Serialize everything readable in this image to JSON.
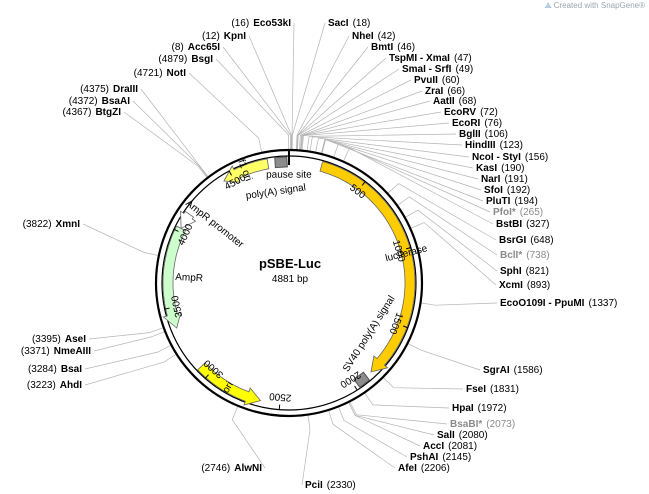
{
  "credit": {
    "logo": "snapgene-logo-icon",
    "text": "Created with SnapGene®"
  },
  "plasmid": {
    "name": "pSBE-Luc",
    "length": "4881 bp",
    "total_bp": 4881
  },
  "ticks": [
    {
      "bp": 500,
      "label": "500"
    },
    {
      "bp": 1000,
      "label": "1000"
    },
    {
      "bp": 1500,
      "label": "1500"
    },
    {
      "bp": 2000,
      "label": "2000"
    },
    {
      "bp": 2500,
      "label": "2500"
    },
    {
      "bp": 3000,
      "label": "3000"
    },
    {
      "bp": 3500,
      "label": "3500"
    },
    {
      "bp": 4000,
      "label": "4000"
    },
    {
      "bp": 4500,
      "label": "4500"
    }
  ],
  "features": [
    {
      "name": "luciferase",
      "start": 210,
      "end": 1862,
      "color": "#ffcc00",
      "dir": 1
    },
    {
      "name": "f1 ori",
      "start": 4440,
      "end": 4745,
      "color": "#ffff66",
      "dir": -1
    },
    {
      "name": "AmpR",
      "start": 3365,
      "end": 4025,
      "color": "#ccffcc",
      "dir": -1
    },
    {
      "name": "ori",
      "start": 2625,
      "end": 3070,
      "color": "#ffff00",
      "dir": -1
    },
    {
      "name": "AmpR promoter",
      "start": 4025,
      "end": 4130,
      "color": "#ffffff",
      "dir": -1
    }
  ],
  "feature_labels": [
    {
      "text": "pause site"
    },
    {
      "text": "poly(A) signal"
    },
    {
      "text": "SV40 poly(A) signal"
    },
    {
      "text": "AmpR promoter"
    },
    {
      "text": "AmpR"
    },
    {
      "text": "f1 ori"
    },
    {
      "text": "ori"
    },
    {
      "text": "luciferase"
    }
  ],
  "sites_right": [
    {
      "name": "SacI",
      "pos": "(18)"
    },
    {
      "name": "NheI",
      "pos": "(42)"
    },
    {
      "name": "BmtI",
      "pos": "(46)"
    },
    {
      "name": "TspMI - XmaI",
      "pos": "(47)"
    },
    {
      "name": "SmaI - SrfI",
      "pos": "(49)"
    },
    {
      "name": "PvuII",
      "pos": "(60)"
    },
    {
      "name": "ZraI",
      "pos": "(66)"
    },
    {
      "name": "AatII",
      "pos": "(68)"
    },
    {
      "name": "EcoRV",
      "pos": "(72)"
    },
    {
      "name": "EcoRI",
      "pos": "(76)"
    },
    {
      "name": "BglII",
      "pos": "(106)"
    },
    {
      "name": "HindIII",
      "pos": "(123)"
    },
    {
      "name": "NcoI - StyI",
      "pos": "(156)"
    },
    {
      "name": "KasI",
      "pos": "(190)"
    },
    {
      "name": "NarI",
      "pos": "(191)"
    },
    {
      "name": "SfoI",
      "pos": "(192)"
    },
    {
      "name": "PluTI",
      "pos": "(194)"
    },
    {
      "name": "PfoI*",
      "pos": "(265)",
      "grey": true
    },
    {
      "name": "BstBI",
      "pos": "(327)"
    },
    {
      "name": "BsrGI",
      "pos": "(648)"
    },
    {
      "name": "BclI*",
      "pos": "(738)",
      "grey": true
    },
    {
      "name": "SphI",
      "pos": "(821)"
    },
    {
      "name": "XcmI",
      "pos": "(893)"
    },
    {
      "name": "EcoO109I - PpuMI",
      "pos": "(1337)"
    },
    {
      "name": "SgrAI",
      "pos": "(1586)"
    },
    {
      "name": "FseI",
      "pos": "(1831)"
    },
    {
      "name": "HpaI",
      "pos": "(1972)"
    },
    {
      "name": "BsaBI*",
      "pos": "(2073)",
      "grey": true
    },
    {
      "name": "SalI",
      "pos": "(2080)"
    },
    {
      "name": "AccI",
      "pos": "(2081)"
    },
    {
      "name": "PshAI",
      "pos": "(2145)"
    },
    {
      "name": "AfeI",
      "pos": "(2206)"
    }
  ],
  "sites_bottom": [
    {
      "name": "PciI",
      "pos": "(2330)"
    }
  ],
  "sites_left": [
    {
      "name": "Eco53kI",
      "pos": "(16)"
    },
    {
      "name": "KpnI",
      "pos": "(12)"
    },
    {
      "name": "Acc65I",
      "pos": "(8)"
    },
    {
      "name": "BsgI",
      "pos": "(4879)"
    },
    {
      "name": "NotI",
      "pos": "(4721)"
    },
    {
      "name": "DraIII",
      "pos": "(4375)"
    },
    {
      "name": "BsaAI",
      "pos": "(4372)"
    },
    {
      "name": "BtgZI",
      "pos": "(4367)"
    },
    {
      "name": "XmnI",
      "pos": "(3822)"
    },
    {
      "name": "AseI",
      "pos": "(3395)"
    },
    {
      "name": "NmeAIII",
      "pos": "(3371)"
    },
    {
      "name": "BsaI",
      "pos": "(3284)"
    },
    {
      "name": "AhdI",
      "pos": "(3223)"
    },
    {
      "name": "AlwNI",
      "pos": "(2746)"
    }
  ]
}
